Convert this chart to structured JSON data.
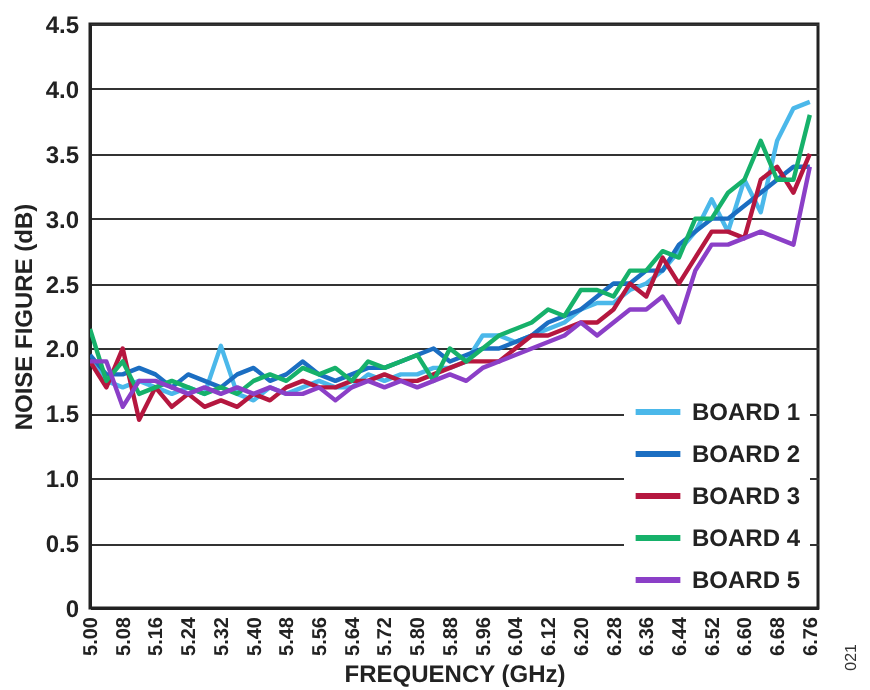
{
  "chart_data": {
    "type": "line",
    "xlabel": "FREQUENCY (GHz)",
    "ylabel": "NOISE FIGURE (dB)",
    "x": [
      5.0,
      5.04,
      5.08,
      5.12,
      5.16,
      5.2,
      5.24,
      5.28,
      5.32,
      5.36,
      5.4,
      5.44,
      5.48,
      5.52,
      5.56,
      5.6,
      5.64,
      5.68,
      5.72,
      5.76,
      5.8,
      5.84,
      5.88,
      5.92,
      5.96,
      6.0,
      6.04,
      6.08,
      6.12,
      6.16,
      6.2,
      6.24,
      6.28,
      6.32,
      6.36,
      6.4,
      6.44,
      6.48,
      6.52,
      6.56,
      6.6,
      6.64,
      6.68,
      6.72,
      6.76
    ],
    "series": [
      {
        "name": "BOARD 1",
        "color": "#4bb8ea",
        "values": [
          1.9,
          1.75,
          1.7,
          1.75,
          1.7,
          1.65,
          1.7,
          1.65,
          2.02,
          1.65,
          1.6,
          1.7,
          1.65,
          1.7,
          1.75,
          1.7,
          1.7,
          1.8,
          1.75,
          1.8,
          1.8,
          1.85,
          1.85,
          1.9,
          2.1,
          2.1,
          2.05,
          2.1,
          2.15,
          2.2,
          2.3,
          2.35,
          2.35,
          2.45,
          2.5,
          2.6,
          2.75,
          2.9,
          3.15,
          2.9,
          3.3,
          3.05,
          3.6,
          3.85,
          3.9
        ]
      },
      {
        "name": "BOARD 2",
        "color": "#1b6ec2",
        "values": [
          1.95,
          1.8,
          1.8,
          1.85,
          1.8,
          1.7,
          1.8,
          1.75,
          1.7,
          1.8,
          1.85,
          1.75,
          1.8,
          1.9,
          1.8,
          1.75,
          1.8,
          1.85,
          1.85,
          1.9,
          1.95,
          2.0,
          1.9,
          1.95,
          2.0,
          2.0,
          2.05,
          2.1,
          2.2,
          2.25,
          2.3,
          2.4,
          2.5,
          2.5,
          2.6,
          2.6,
          2.8,
          2.9,
          3.0,
          3.0,
          3.1,
          3.2,
          3.3,
          3.4,
          3.4
        ]
      },
      {
        "name": "BOARD 3",
        "color": "#b5173f",
        "values": [
          1.9,
          1.7,
          2.0,
          1.45,
          1.7,
          1.55,
          1.65,
          1.55,
          1.6,
          1.55,
          1.65,
          1.6,
          1.7,
          1.75,
          1.7,
          1.7,
          1.75,
          1.75,
          1.8,
          1.75,
          1.75,
          1.8,
          1.85,
          1.9,
          1.9,
          1.9,
          2.0,
          2.1,
          2.1,
          2.15,
          2.2,
          2.2,
          2.3,
          2.5,
          2.4,
          2.7,
          2.5,
          2.7,
          2.9,
          2.9,
          2.85,
          3.3,
          3.4,
          3.2,
          3.5
        ]
      },
      {
        "name": "BOARD 4",
        "color": "#16b16a",
        "values": [
          2.15,
          1.75,
          1.9,
          1.65,
          1.7,
          1.75,
          1.7,
          1.65,
          1.7,
          1.65,
          1.75,
          1.8,
          1.75,
          1.85,
          1.8,
          1.85,
          1.75,
          1.9,
          1.85,
          1.9,
          1.95,
          1.75,
          2.0,
          1.9,
          2.0,
          2.1,
          2.15,
          2.2,
          2.3,
          2.25,
          2.45,
          2.45,
          2.4,
          2.6,
          2.6,
          2.75,
          2.7,
          3.0,
          3.0,
          3.2,
          3.3,
          3.6,
          3.3,
          3.3,
          3.8
        ]
      },
      {
        "name": "BOARD 5",
        "color": "#8b3fc7",
        "values": [
          1.9,
          1.9,
          1.55,
          1.75,
          1.75,
          1.7,
          1.65,
          1.7,
          1.65,
          1.7,
          1.65,
          1.7,
          1.65,
          1.65,
          1.7,
          1.6,
          1.7,
          1.75,
          1.7,
          1.75,
          1.7,
          1.75,
          1.8,
          1.75,
          1.85,
          1.9,
          1.95,
          2.0,
          2.05,
          2.1,
          2.2,
          2.1,
          2.2,
          2.3,
          2.3,
          2.4,
          2.2,
          2.6,
          2.8,
          2.8,
          2.85,
          2.9,
          2.85,
          2.8,
          3.4
        ]
      }
    ],
    "xlim": [
      5.0,
      6.78
    ],
    "xticks": [
      {
        "value": 5.0,
        "label": "5.00"
      },
      {
        "value": 5.08,
        "label": "5.08"
      },
      {
        "value": 5.16,
        "label": "5.16"
      },
      {
        "value": 5.24,
        "label": "5.24"
      },
      {
        "value": 5.32,
        "label": "5.32"
      },
      {
        "value": 5.4,
        "label": "5.40"
      },
      {
        "value": 5.48,
        "label": "5.48"
      },
      {
        "value": 5.56,
        "label": "5.56"
      },
      {
        "value": 5.64,
        "label": "5.64"
      },
      {
        "value": 5.72,
        "label": "5.72"
      },
      {
        "value": 5.8,
        "label": "5.80"
      },
      {
        "value": 5.88,
        "label": "5.88"
      },
      {
        "value": 5.96,
        "label": "5.96"
      },
      {
        "value": 6.04,
        "label": "6.04"
      },
      {
        "value": 6.12,
        "label": "6.12"
      },
      {
        "value": 6.2,
        "label": "6.20"
      },
      {
        "value": 6.28,
        "label": "6.28"
      },
      {
        "value": 6.36,
        "label": "6.36"
      },
      {
        "value": 6.44,
        "label": "6.44"
      },
      {
        "value": 6.52,
        "label": "6.52"
      },
      {
        "value": 6.6,
        "label": "6.60"
      },
      {
        "value": 6.68,
        "label": "6.68"
      },
      {
        "value": 6.76,
        "label": "6.76"
      }
    ],
    "ylim": [
      0,
      4.5
    ],
    "yticks": [
      0,
      {
        "value": 0.5,
        "label": "0.5"
      },
      {
        "value": 1,
        "label": "1.0"
      },
      {
        "value": 1.5,
        "label": "1.5"
      },
      {
        "value": 2,
        "label": "2.0"
      },
      {
        "value": 2.5,
        "label": "2.5"
      },
      {
        "value": 3,
        "label": "3.0"
      },
      {
        "value": 3.5,
        "label": "3.5"
      },
      {
        "value": 4,
        "label": "4.0"
      },
      {
        "value": 4.5,
        "label": "4.5"
      }
    ],
    "grid": "y",
    "legend": "bottom right",
    "marker": "none",
    "line_style": "solid",
    "annotations": [
      "021"
    ]
  }
}
